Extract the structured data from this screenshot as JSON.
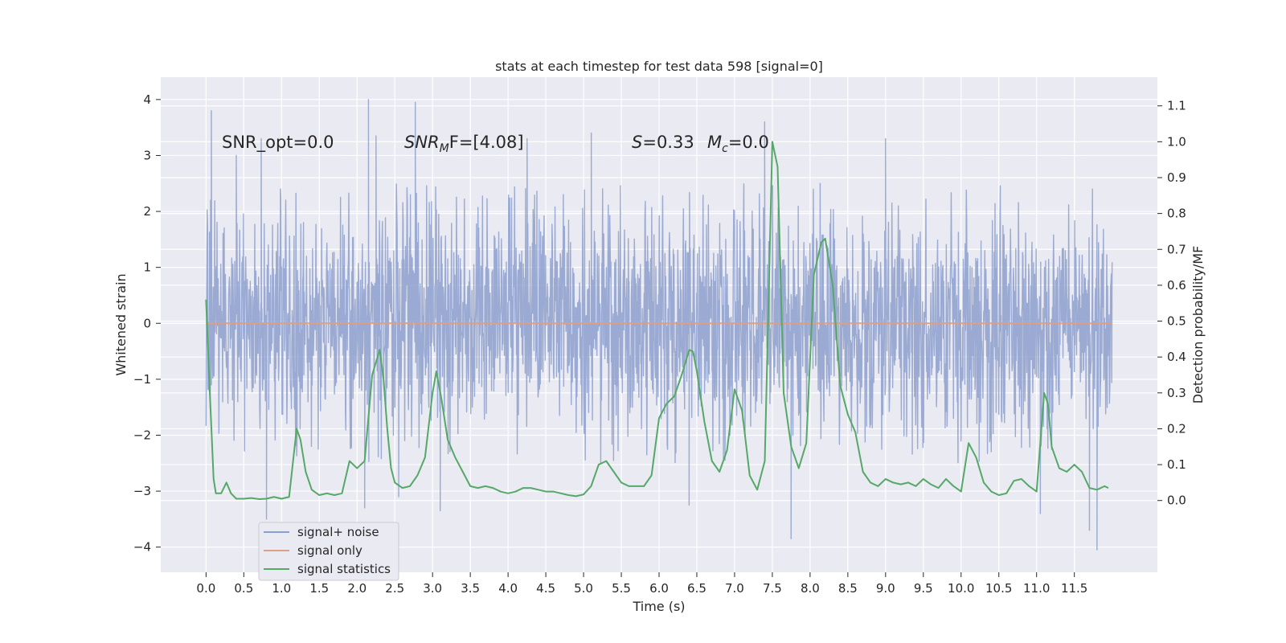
{
  "chart_data": {
    "type": "line",
    "title": "stats at each timestep for test data 598 [signal=0]",
    "xlabel": "Time (s)",
    "ylabel_left": "Whitened strain",
    "ylabel_right": "Detection probability/MF",
    "xlim": [
      -0.6,
      12.6
    ],
    "ylim_left": [
      -4.45,
      4.4
    ],
    "ylim_right": [
      -0.2,
      1.18
    ],
    "xticks": [
      "0.0",
      "0.5",
      "1.0",
      "1.5",
      "2.0",
      "2.5",
      "3.0",
      "3.5",
      "4.0",
      "4.5",
      "5.0",
      "5.5",
      "6.0",
      "6.5",
      "7.0",
      "7.5",
      "8.0",
      "8.5",
      "9.0",
      "9.5",
      "10.0",
      "10.5",
      "11.0",
      "11.5"
    ],
    "yticks_left": [
      "4",
      "3",
      "2",
      "1",
      "0",
      "−1",
      "−2",
      "−3",
      "−4"
    ],
    "yticks_right": [
      "1.1",
      "1.0",
      "0.9",
      "0.8",
      "0.7",
      "0.6",
      "0.5",
      "0.4",
      "0.3",
      "0.2",
      "0.1",
      "0.0"
    ],
    "grid": true,
    "legend_position": "lower-left",
    "annotations": {
      "snr_opt": "SNR_opt=0.0",
      "snr_mf_main": "SNR",
      "snr_mf_sub": "M",
      "snr_mf_rest": "F=[4.08]",
      "s_label": "S",
      "s_value": "=0.33",
      "mc_label": "M",
      "mc_sub": "c",
      "mc_value": "=0.0"
    },
    "series": [
      {
        "name": "signal+ noise",
        "axis": "left",
        "color": "#8c9fcc",
        "duration_s": 12.0,
        "typical_range": [
          -1.3,
          1.3
        ],
        "envelope_range": [
          -2.5,
          2.5
        ],
        "spikes": [
          {
            "t": 0.07,
            "v": 3.8
          },
          {
            "t": 0.4,
            "v": 3.0
          },
          {
            "t": 0.73,
            "v": 3.3
          },
          {
            "t": 0.8,
            "v": -3.5
          },
          {
            "t": 2.15,
            "v": 4.0
          },
          {
            "t": 2.1,
            "v": -3.3
          },
          {
            "t": 2.25,
            "v": 3.35
          },
          {
            "t": 2.77,
            "v": 3.95
          },
          {
            "t": 2.55,
            "v": -3.1
          },
          {
            "t": 3.1,
            "v": -3.35
          },
          {
            "t": 4.25,
            "v": 3.3
          },
          {
            "t": 5.1,
            "v": 3.4
          },
          {
            "t": 6.4,
            "v": -3.25
          },
          {
            "t": 7.4,
            "v": 3.6
          },
          {
            "t": 7.75,
            "v": -3.85
          },
          {
            "t": 9.0,
            "v": 3.3
          },
          {
            "t": 11.05,
            "v": -3.4
          },
          {
            "t": 11.8,
            "v": -4.05
          },
          {
            "t": 11.7,
            "v": -3.7
          }
        ]
      },
      {
        "name": "signal only",
        "axis": "left",
        "color": "#dd9f85",
        "x": [
          0.0,
          12.0
        ],
        "values": [
          0.0,
          0.0
        ]
      },
      {
        "name": "signal statistics",
        "axis": "right",
        "color": "#55a868",
        "x": [
          0.0,
          0.05,
          0.1,
          0.13,
          0.2,
          0.27,
          0.33,
          0.4,
          0.5,
          0.6,
          0.7,
          0.8,
          0.9,
          1.0,
          1.1,
          1.2,
          1.25,
          1.32,
          1.4,
          1.5,
          1.6,
          1.7,
          1.8,
          1.9,
          2.0,
          2.1,
          2.2,
          2.3,
          2.35,
          2.4,
          2.45,
          2.5,
          2.6,
          2.7,
          2.8,
          2.9,
          3.0,
          3.05,
          3.12,
          3.2,
          3.3,
          3.4,
          3.5,
          3.6,
          3.7,
          3.8,
          3.9,
          4.0,
          4.1,
          4.2,
          4.3,
          4.4,
          4.5,
          4.6,
          4.7,
          4.8,
          4.9,
          5.0,
          5.1,
          5.2,
          5.3,
          5.4,
          5.5,
          5.6,
          5.7,
          5.8,
          5.9,
          6.0,
          6.1,
          6.2,
          6.3,
          6.4,
          6.45,
          6.5,
          6.6,
          6.7,
          6.8,
          6.9,
          7.0,
          7.1,
          7.2,
          7.3,
          7.4,
          7.5,
          7.57,
          7.65,
          7.75,
          7.85,
          7.95,
          8.05,
          8.15,
          8.2,
          8.3,
          8.4,
          8.5,
          8.6,
          8.7,
          8.8,
          8.9,
          9.0,
          9.1,
          9.2,
          9.3,
          9.4,
          9.5,
          9.6,
          9.7,
          9.8,
          9.9,
          10.0,
          10.1,
          10.2,
          10.3,
          10.4,
          10.5,
          10.6,
          10.7,
          10.8,
          10.9,
          11.0,
          11.1,
          11.15,
          11.2,
          11.3,
          11.4,
          11.5,
          11.6,
          11.7,
          11.8,
          11.9,
          11.95
        ],
        "values": [
          0.56,
          0.3,
          0.06,
          0.02,
          0.02,
          0.05,
          0.02,
          0.005,
          0.005,
          0.007,
          0.004,
          0.005,
          0.01,
          0.005,
          0.01,
          0.2,
          0.17,
          0.08,
          0.03,
          0.015,
          0.02,
          0.015,
          0.02,
          0.11,
          0.09,
          0.11,
          0.35,
          0.42,
          0.34,
          0.2,
          0.09,
          0.05,
          0.035,
          0.04,
          0.07,
          0.12,
          0.3,
          0.36,
          0.28,
          0.17,
          0.12,
          0.08,
          0.04,
          0.035,
          0.04,
          0.035,
          0.025,
          0.02,
          0.025,
          0.035,
          0.035,
          0.03,
          0.025,
          0.025,
          0.02,
          0.015,
          0.012,
          0.017,
          0.04,
          0.1,
          0.11,
          0.08,
          0.05,
          0.04,
          0.04,
          0.04,
          0.07,
          0.23,
          0.27,
          0.29,
          0.35,
          0.42,
          0.415,
          0.36,
          0.22,
          0.11,
          0.08,
          0.14,
          0.31,
          0.25,
          0.07,
          0.03,
          0.11,
          1.0,
          0.93,
          0.3,
          0.15,
          0.09,
          0.16,
          0.63,
          0.72,
          0.73,
          0.6,
          0.32,
          0.24,
          0.19,
          0.08,
          0.05,
          0.04,
          0.06,
          0.05,
          0.045,
          0.05,
          0.04,
          0.06,
          0.045,
          0.035,
          0.06,
          0.04,
          0.025,
          0.16,
          0.12,
          0.05,
          0.025,
          0.015,
          0.02,
          0.055,
          0.06,
          0.04,
          0.025,
          0.3,
          0.27,
          0.15,
          0.09,
          0.08,
          0.1,
          0.08,
          0.035,
          0.03,
          0.04,
          0.035
        ]
      }
    ]
  }
}
